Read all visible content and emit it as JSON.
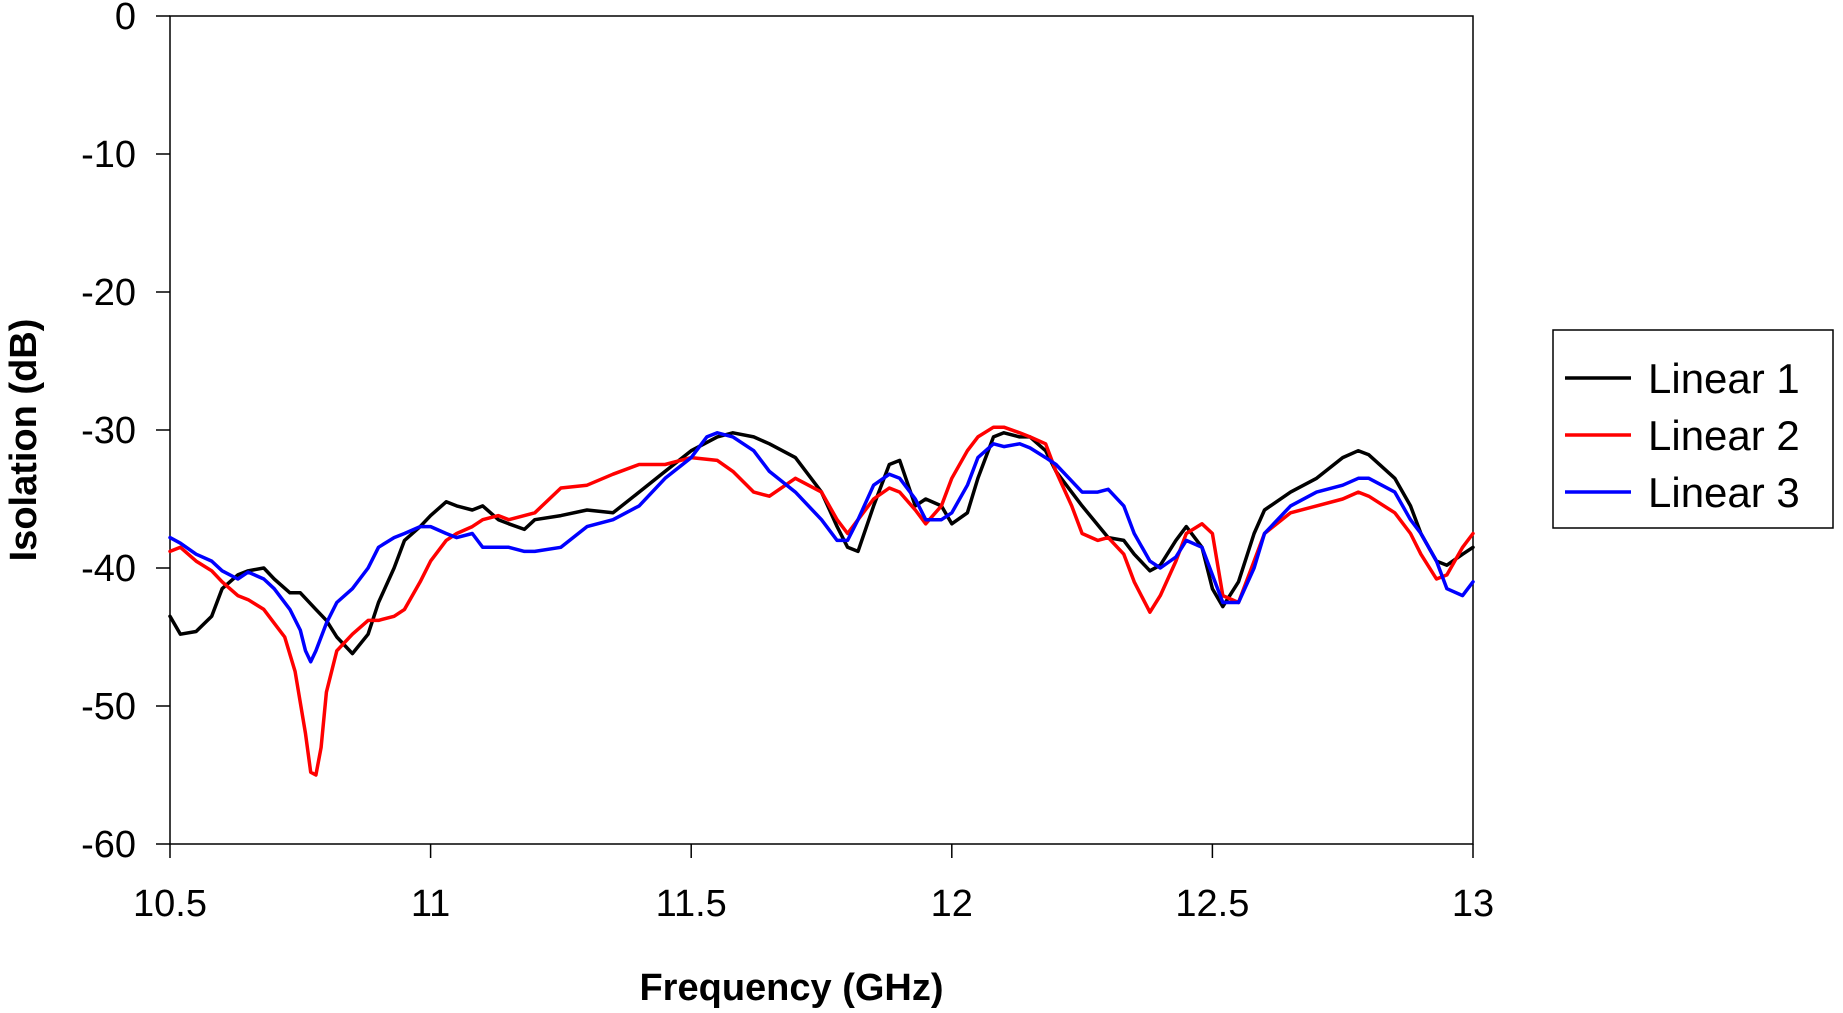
{
  "chart_data": {
    "type": "line",
    "title": "",
    "xlabel": "Frequency (GHz)",
    "ylabel": "Isolation (dB)",
    "xlim": [
      10.5,
      13
    ],
    "ylim": [
      -60,
      0
    ],
    "xticks": [
      10.5,
      11,
      11.5,
      12,
      12.5,
      13
    ],
    "yticks": [
      0,
      -10,
      -20,
      -30,
      -40,
      -50,
      -60
    ],
    "xtick_labels": [
      "10.5",
      "11",
      "11.5",
      "12",
      "12.5",
      "13"
    ],
    "ytick_labels": [
      "0",
      "-10",
      "-20",
      "-30",
      "-40",
      "-50",
      "-60"
    ],
    "grid": false,
    "legend_position": "right",
    "series": [
      {
        "name": "Linear 1",
        "color": "#000000",
        "x": [
          10.5,
          10.52,
          10.55,
          10.58,
          10.6,
          10.63,
          10.65,
          10.68,
          10.7,
          10.73,
          10.75,
          10.78,
          10.8,
          10.82,
          10.85,
          10.88,
          10.9,
          10.93,
          10.95,
          10.98,
          11.0,
          11.03,
          11.05,
          11.08,
          11.1,
          11.13,
          11.15,
          11.18,
          11.2,
          11.25,
          11.3,
          11.35,
          11.4,
          11.45,
          11.5,
          11.55,
          11.58,
          11.62,
          11.65,
          11.7,
          11.75,
          11.78,
          11.8,
          11.82,
          11.85,
          11.88,
          11.9,
          11.93,
          11.95,
          11.98,
          12.0,
          12.03,
          12.05,
          12.08,
          12.1,
          12.13,
          12.15,
          12.18,
          12.2,
          12.25,
          12.3,
          12.33,
          12.35,
          12.38,
          12.4,
          12.43,
          12.45,
          12.48,
          12.5,
          12.52,
          12.55,
          12.58,
          12.6,
          12.65,
          12.7,
          12.75,
          12.78,
          12.8,
          12.85,
          12.88,
          12.9,
          12.93,
          12.95,
          12.98,
          13.0
        ],
        "y": [
          -43.5,
          -44.8,
          -44.6,
          -43.5,
          -41.5,
          -40.5,
          -40.2,
          -40.0,
          -40.8,
          -41.8,
          -41.8,
          -43.0,
          -43.8,
          -45.0,
          -46.2,
          -44.8,
          -42.5,
          -40.0,
          -38.0,
          -37.0,
          -36.2,
          -35.2,
          -35.5,
          -35.8,
          -35.5,
          -36.5,
          -36.8,
          -37.2,
          -36.5,
          -36.2,
          -35.8,
          -36.0,
          -34.5,
          -33.0,
          -31.5,
          -30.5,
          -30.2,
          -30.5,
          -31.0,
          -32.0,
          -34.5,
          -37.0,
          -38.5,
          -38.8,
          -35.5,
          -32.5,
          -32.2,
          -35.5,
          -35.0,
          -35.5,
          -36.8,
          -36.0,
          -33.5,
          -30.5,
          -30.2,
          -30.5,
          -30.5,
          -31.5,
          -33.0,
          -35.5,
          -37.8,
          -38.0,
          -39.0,
          -40.2,
          -39.8,
          -38.0,
          -37.0,
          -38.5,
          -41.5,
          -42.8,
          -41.0,
          -37.5,
          -35.8,
          -34.5,
          -33.5,
          -32.0,
          -31.5,
          -31.8,
          -33.5,
          -35.5,
          -37.5,
          -39.5,
          -39.8,
          -39.0,
          -38.5
        ]
      },
      {
        "name": "Linear 2",
        "color": "#ff0000",
        "x": [
          10.5,
          10.52,
          10.55,
          10.58,
          10.6,
          10.63,
          10.65,
          10.68,
          10.7,
          10.72,
          10.74,
          10.76,
          10.77,
          10.78,
          10.79,
          10.8,
          10.82,
          10.85,
          10.88,
          10.9,
          10.93,
          10.95,
          10.98,
          11.0,
          11.03,
          11.05,
          11.08,
          11.1,
          11.13,
          11.15,
          11.18,
          11.2,
          11.25,
          11.3,
          11.35,
          11.4,
          11.45,
          11.5,
          11.55,
          11.58,
          11.62,
          11.65,
          11.7,
          11.75,
          11.78,
          11.8,
          11.82,
          11.85,
          11.88,
          11.9,
          11.93,
          11.95,
          11.98,
          12.0,
          12.03,
          12.05,
          12.08,
          12.1,
          12.13,
          12.15,
          12.18,
          12.2,
          12.23,
          12.25,
          12.28,
          12.3,
          12.33,
          12.35,
          12.38,
          12.4,
          12.43,
          12.45,
          12.48,
          12.5,
          12.52,
          12.55,
          12.58,
          12.6,
          12.65,
          12.7,
          12.75,
          12.78,
          12.8,
          12.85,
          12.88,
          12.9,
          12.93,
          12.95,
          12.98,
          13.0
        ],
        "y": [
          -38.8,
          -38.5,
          -39.5,
          -40.2,
          -41.0,
          -42.0,
          -42.3,
          -43.0,
          -44.0,
          -45.0,
          -47.5,
          -52.0,
          -54.8,
          -55.0,
          -53.0,
          -49.0,
          -46.0,
          -44.8,
          -43.8,
          -43.8,
          -43.5,
          -43.0,
          -41.0,
          -39.5,
          -38.0,
          -37.5,
          -37.0,
          -36.5,
          -36.2,
          -36.5,
          -36.2,
          -36.0,
          -34.2,
          -34.0,
          -33.2,
          -32.5,
          -32.5,
          -32.0,
          -32.2,
          -33.0,
          -34.5,
          -34.8,
          -33.5,
          -34.5,
          -36.5,
          -37.5,
          -36.5,
          -35.0,
          -34.2,
          -34.5,
          -35.8,
          -36.8,
          -35.5,
          -33.5,
          -31.5,
          -30.5,
          -29.8,
          -29.8,
          -30.2,
          -30.5,
          -31.0,
          -33.0,
          -35.5,
          -37.5,
          -38.0,
          -37.8,
          -39.0,
          -41.0,
          -43.2,
          -42.0,
          -39.5,
          -37.5,
          -36.8,
          -37.5,
          -42.0,
          -42.5,
          -39.5,
          -37.5,
          -36.0,
          -35.5,
          -35.0,
          -34.5,
          -34.8,
          -36.0,
          -37.5,
          -39.0,
          -40.8,
          -40.5,
          -38.5,
          -37.5
        ]
      },
      {
        "name": "Linear 3",
        "color": "#0000ff",
        "x": [
          10.5,
          10.52,
          10.55,
          10.58,
          10.6,
          10.63,
          10.65,
          10.68,
          10.7,
          10.73,
          10.75,
          10.76,
          10.77,
          10.78,
          10.8,
          10.82,
          10.85,
          10.88,
          10.9,
          10.93,
          10.95,
          10.98,
          11.0,
          11.03,
          11.05,
          11.08,
          11.1,
          11.13,
          11.15,
          11.18,
          11.2,
          11.25,
          11.3,
          11.35,
          11.4,
          11.45,
          11.5,
          11.53,
          11.55,
          11.58,
          11.62,
          11.65,
          11.7,
          11.75,
          11.78,
          11.8,
          11.82,
          11.85,
          11.88,
          11.9,
          11.93,
          11.95,
          11.98,
          12.0,
          12.03,
          12.05,
          12.08,
          12.1,
          12.13,
          12.15,
          12.18,
          12.2,
          12.25,
          12.28,
          12.3,
          12.33,
          12.35,
          12.38,
          12.4,
          12.43,
          12.45,
          12.48,
          12.5,
          12.52,
          12.55,
          12.58,
          12.6,
          12.65,
          12.7,
          12.75,
          12.78,
          12.8,
          12.85,
          12.88,
          12.9,
          12.93,
          12.95,
          12.98,
          13.0
        ],
        "y": [
          -37.8,
          -38.2,
          -39.0,
          -39.5,
          -40.2,
          -40.8,
          -40.3,
          -40.8,
          -41.5,
          -43.0,
          -44.5,
          -46.0,
          -46.8,
          -46.0,
          -44.0,
          -42.5,
          -41.5,
          -40.0,
          -38.5,
          -37.8,
          -37.5,
          -37.0,
          -37.0,
          -37.5,
          -37.8,
          -37.5,
          -38.5,
          -38.5,
          -38.5,
          -38.8,
          -38.8,
          -38.5,
          -37.0,
          -36.5,
          -35.5,
          -33.5,
          -32.0,
          -30.5,
          -30.2,
          -30.5,
          -31.5,
          -33.0,
          -34.5,
          -36.5,
          -38.0,
          -38.0,
          -36.5,
          -34.0,
          -33.2,
          -33.5,
          -35.0,
          -36.5,
          -36.5,
          -36.0,
          -34.0,
          -32.0,
          -31.0,
          -31.2,
          -31.0,
          -31.3,
          -32.0,
          -32.5,
          -34.5,
          -34.5,
          -34.3,
          -35.5,
          -37.5,
          -39.5,
          -40.0,
          -39.2,
          -38.0,
          -38.5,
          -40.5,
          -42.5,
          -42.5,
          -40.0,
          -37.5,
          -35.5,
          -34.5,
          -34.0,
          -33.5,
          -33.5,
          -34.5,
          -36.5,
          -37.5,
          -39.5,
          -41.5,
          -42.0,
          -41.0
        ]
      }
    ]
  }
}
